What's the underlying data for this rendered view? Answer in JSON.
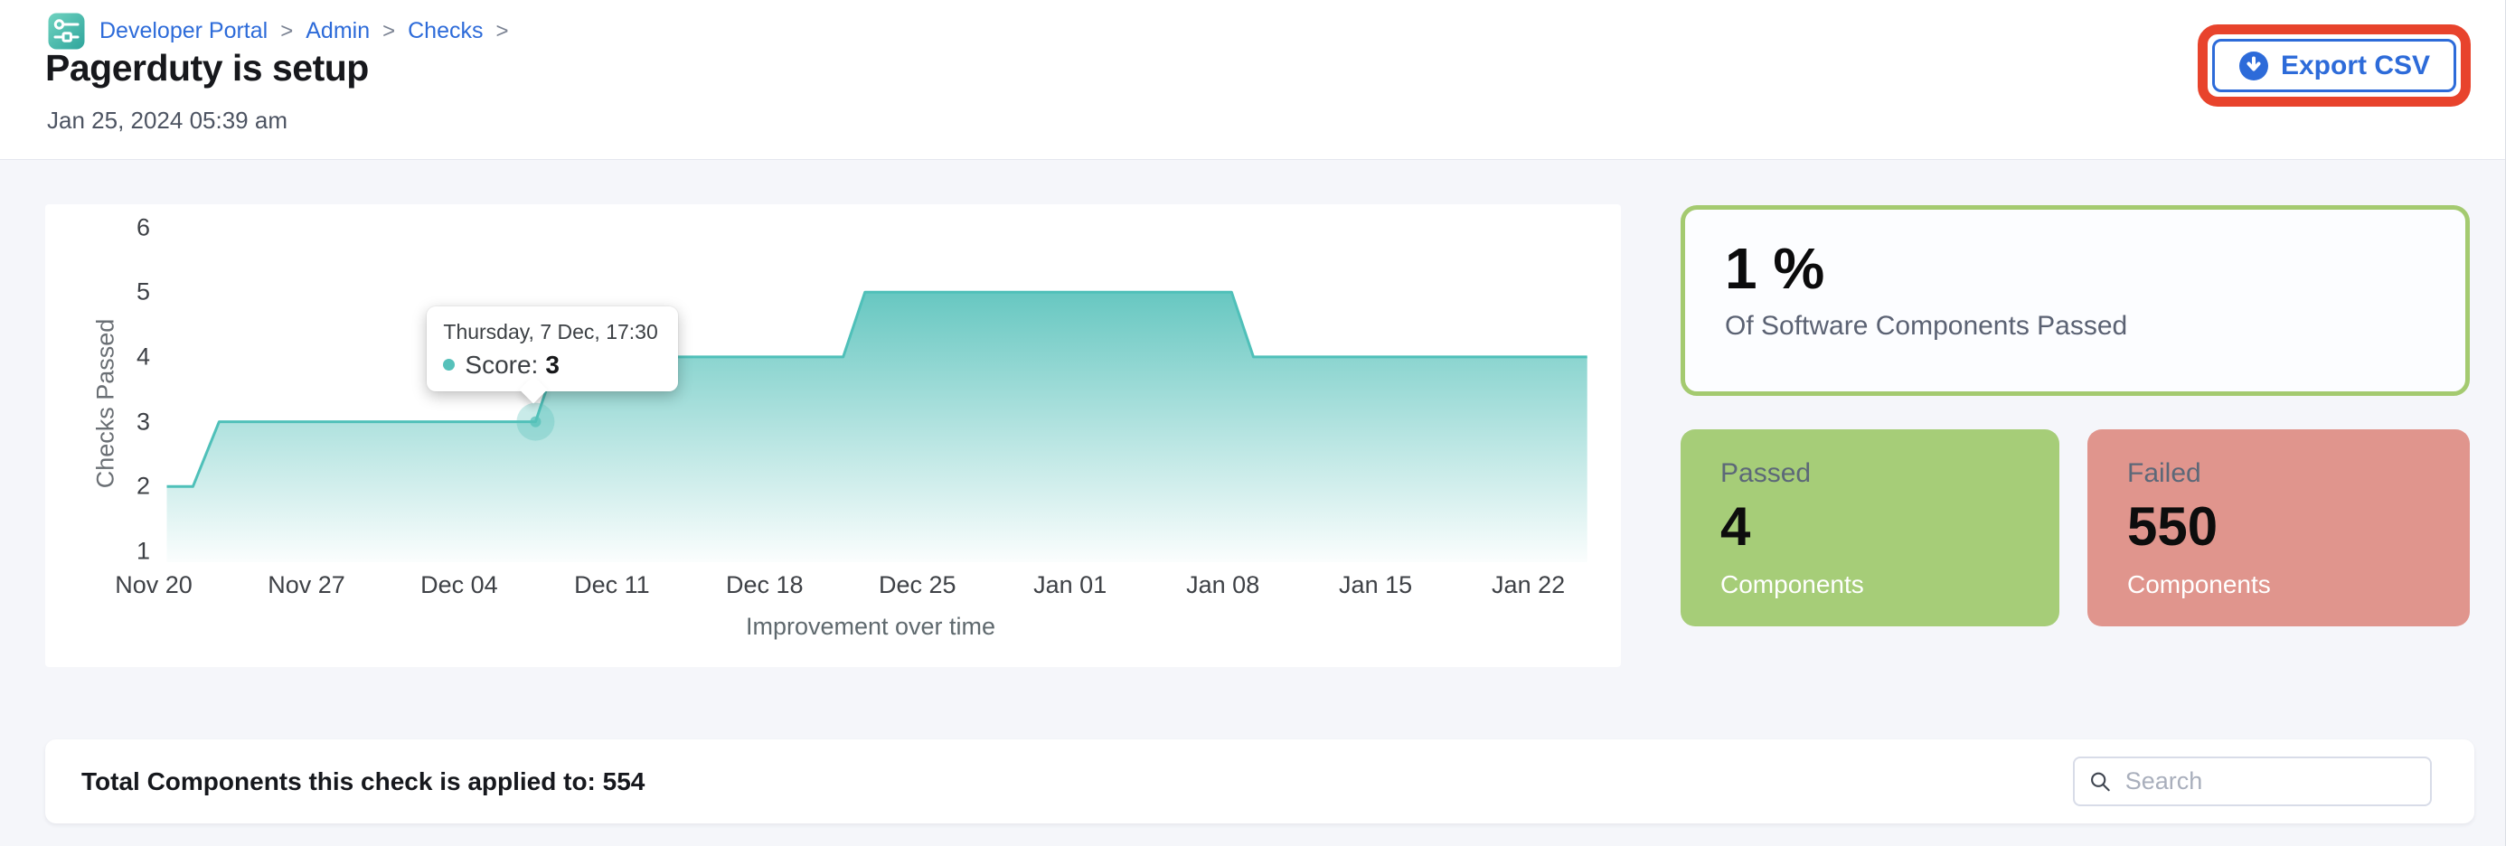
{
  "colors": {
    "accent_teal": "#56c1ba",
    "link_blue": "#2d6bd9",
    "highlight_red": "#e8432c",
    "green_card": "#a6cd78",
    "green_border": "#a4ca70",
    "red_card": "#e0958d",
    "page_bg": "#f5f6fa"
  },
  "breadcrumb": {
    "items": [
      "Developer Portal",
      "Admin",
      "Checks"
    ],
    "separator": ">",
    "icon": "developer-portal-logo"
  },
  "header": {
    "title": "Pagerduty is setup",
    "date": "Jan 25, 2024 05:39 am",
    "export_button": {
      "label": "Export CSV",
      "icon": "download-icon"
    }
  },
  "chart_data": {
    "type": "area",
    "title": "",
    "xlabel": "Improvement over time",
    "ylabel": "Checks Passed",
    "x_origin": "Nov 20",
    "x_unit": "days since Nov 20",
    "x_ticks": [
      {
        "day": 0,
        "label": "Nov 20"
      },
      {
        "day": 7,
        "label": "Nov 27"
      },
      {
        "day": 14,
        "label": "Dec 04"
      },
      {
        "day": 21,
        "label": "Dec 11"
      },
      {
        "day": 28,
        "label": "Dec 18"
      },
      {
        "day": 35,
        "label": "Dec 25"
      },
      {
        "day": 42,
        "label": "Jan 01"
      },
      {
        "day": 49,
        "label": "Jan 08"
      },
      {
        "day": 56,
        "label": "Jan 15"
      },
      {
        "day": 63,
        "label": "Jan 22"
      }
    ],
    "y_ticks": [
      6,
      5,
      4,
      3,
      2,
      1
    ],
    "ylim": [
      1,
      6
    ],
    "grid": false,
    "legend": false,
    "line_color": "#4fc0b9",
    "series": [
      {
        "name": "Score",
        "points": [
          [
            0.6,
            2
          ],
          [
            1.8,
            2
          ],
          [
            3.0,
            3
          ],
          [
            17.5,
            3
          ],
          [
            18.5,
            4
          ],
          [
            31.6,
            4
          ],
          [
            32.6,
            5
          ],
          [
            49.4,
            5
          ],
          [
            50.4,
            4
          ],
          [
            65.7,
            4
          ]
        ]
      }
    ],
    "highlight_point": {
      "day": 17.5,
      "value": 3
    },
    "tooltip": {
      "date": "Thursday, 7 Dec, 17:30",
      "label": "Score:",
      "value": "3"
    }
  },
  "stats": {
    "percent_card": {
      "value": "1 %",
      "subtitle": "Of Software Components Passed"
    },
    "passed_card": {
      "label": "Passed",
      "value": "4",
      "unit": "Components"
    },
    "failed_card": {
      "label": "Failed",
      "value": "550",
      "unit": "Components"
    }
  },
  "footer": {
    "total_label": "Total Components this check is applied to: 554",
    "search_placeholder": "Search"
  }
}
